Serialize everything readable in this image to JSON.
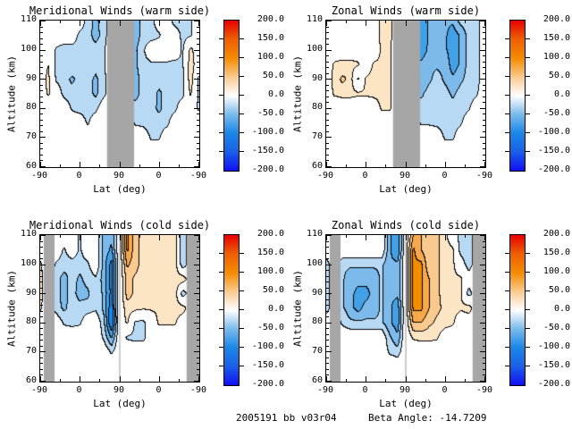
{
  "axes": {
    "x_title": "Lat (deg)",
    "y_title": "Altitude (km)",
    "x_tick_labels": [
      "-90",
      "0",
      "90",
      "0",
      "-90"
    ],
    "y_tick_labels": [
      "110",
      "100",
      "90",
      "80",
      "70",
      "60"
    ],
    "y_range_km": [
      60,
      110
    ]
  },
  "colorbar": {
    "labels": [
      "200.0",
      "150.0",
      "100.0",
      "50.0",
      "0.0",
      "-50.0",
      "-100.0",
      "-150.0",
      "-200.0"
    ],
    "min": -200.0,
    "max": 200.0,
    "gradient_top_to_bottom": [
      "#e80000",
      "#ee5f00",
      "#f28c00",
      "#f9c98e",
      "#ffffff",
      "#7cbaec",
      "#1a87e6",
      "#1b5fe6",
      "#120ff2"
    ]
  },
  "palette": {
    "positive_fills": [
      "#ffffff",
      "#fce5c4",
      "#f9c98e",
      "#f7a84b",
      "#f28c00",
      "#ee5f00",
      "#eb2f00",
      "#e80000"
    ],
    "negative_fills": [
      "#ffffff",
      "#b8d9f3",
      "#7cbaec",
      "#42a0e6",
      "#1a87e6",
      "#1b5fe6",
      "#1634ec",
      "#120ff2"
    ],
    "contour_line": "#000000",
    "missing_data_gray": "#a6a6a6",
    "polar_gap_line": "#cccccc",
    "background": "#ffffff"
  },
  "footer": {
    "dataset_id": "2005191 bb v03r04",
    "beta_angle": "Beta Angle: -14.7209"
  },
  "chart_data": [
    {
      "type": "heatmap",
      "title": "Meridional Winds (warm side)",
      "xlabel": "Lat (deg)",
      "ylabel": "Altitude (km)",
      "x_tick_labels": [
        "-90",
        "0",
        "90",
        "0",
        "-90"
      ],
      "lat_track_deg": [
        -90,
        -72,
        -54,
        -36,
        -18,
        0,
        18,
        36,
        54,
        72,
        90,
        72,
        54,
        36,
        18,
        0,
        -18,
        -36,
        -54,
        -72,
        -90
      ],
      "altitudes_km": [
        110,
        105,
        100,
        95,
        90,
        85,
        80,
        75,
        70,
        65,
        60
      ],
      "value_range": [
        -200,
        200
      ],
      "contour_interval": 25,
      "missing_data_bands_t": [
        [
          0.42,
          0.59
        ]
      ],
      "polar_gap_t": [],
      "values": [
        [
          0,
          0,
          0,
          0,
          0,
          0,
          -40,
          -55,
          -40,
          0,
          0,
          -40,
          -65,
          -40,
          -40,
          0,
          0,
          -40,
          -40,
          -30,
          0
        ],
        [
          0,
          0,
          0,
          0,
          0,
          -35,
          -40,
          -60,
          -40,
          0,
          0,
          -40,
          -65,
          -40,
          -40,
          -30,
          0,
          0,
          -35,
          -30,
          0
        ],
        [
          0,
          0,
          -30,
          -40,
          -40,
          -40,
          -40,
          -40,
          -30,
          0,
          0,
          -35,
          -55,
          -30,
          0,
          0,
          0,
          0,
          -30,
          35,
          0
        ],
        [
          0,
          25,
          -30,
          -40,
          -30,
          -40,
          -40,
          -40,
          -30,
          0,
          0,
          -35,
          -55,
          -35,
          -30,
          -30,
          -30,
          -35,
          -30,
          45,
          0
        ],
        [
          0,
          35,
          -30,
          -40,
          -55,
          -40,
          -40,
          -55,
          -35,
          0,
          0,
          -40,
          -60,
          -40,
          -40,
          -40,
          -35,
          -40,
          -35,
          45,
          -30
        ],
        [
          0,
          30,
          0,
          -35,
          -40,
          -40,
          -40,
          -55,
          -35,
          0,
          0,
          -40,
          -60,
          -40,
          -35,
          -55,
          -40,
          -40,
          -35,
          30,
          -30
        ],
        [
          0,
          0,
          0,
          0,
          -30,
          -40,
          -40,
          -35,
          0,
          0,
          0,
          -35,
          -40,
          -40,
          -40,
          -55,
          -40,
          -35,
          0,
          0,
          -30
        ],
        [
          0,
          0,
          0,
          0,
          0,
          0,
          -30,
          0,
          0,
          0,
          0,
          0,
          -30,
          -35,
          -40,
          -40,
          -35,
          0,
          0,
          0,
          0
        ],
        [
          0,
          0,
          0,
          0,
          0,
          0,
          0,
          0,
          0,
          0,
          0,
          0,
          0,
          0,
          -30,
          -30,
          0,
          0,
          0,
          0,
          0
        ],
        [
          0,
          0,
          0,
          0,
          0,
          0,
          0,
          0,
          0,
          0,
          0,
          0,
          0,
          0,
          0,
          0,
          0,
          0,
          0,
          0,
          0
        ],
        [
          0,
          0,
          0,
          0,
          0,
          0,
          0,
          0,
          0,
          0,
          0,
          0,
          0,
          0,
          0,
          0,
          0,
          0,
          0,
          0,
          0
        ]
      ]
    },
    {
      "type": "heatmap",
      "title": "Zonal Winds (warm side)",
      "xlabel": "Lat (deg)",
      "ylabel": "Altitude (km)",
      "x_tick_labels": [
        "-90",
        "0",
        "90",
        "0",
        "-90"
      ],
      "lat_track_deg": [
        -90,
        -72,
        -54,
        -36,
        -18,
        0,
        18,
        36,
        54,
        72,
        90,
        72,
        54,
        36,
        18,
        0,
        -18,
        -36,
        -54,
        -72,
        -90
      ],
      "altitudes_km": [
        110,
        105,
        100,
        95,
        90,
        85,
        80,
        75,
        70,
        65,
        60
      ],
      "value_range": [
        -200,
        200
      ],
      "contour_interval": 25,
      "missing_data_bands_t": [
        [
          0.42,
          0.59
        ]
      ],
      "polar_gap_t": [],
      "values": [
        [
          0,
          0,
          0,
          0,
          0,
          0,
          0,
          35,
          35,
          0,
          0,
          -70,
          -95,
          -70,
          -70,
          -70,
          -70,
          -40,
          -40,
          -40,
          0
        ],
        [
          0,
          0,
          0,
          0,
          0,
          0,
          0,
          35,
          35,
          0,
          0,
          -70,
          -95,
          -70,
          -55,
          -70,
          -90,
          -70,
          -40,
          -40,
          0
        ],
        [
          0,
          0,
          0,
          0,
          0,
          0,
          0,
          30,
          30,
          0,
          0,
          -70,
          -90,
          -70,
          -55,
          -70,
          -90,
          -70,
          -40,
          -40,
          0
        ],
        [
          0,
          30,
          35,
          35,
          30,
          0,
          30,
          30,
          30,
          0,
          0,
          -70,
          -70,
          -55,
          -55,
          -55,
          -90,
          -70,
          -40,
          -40,
          0
        ],
        [
          0,
          35,
          55,
          45,
          -30,
          30,
          35,
          35,
          30,
          0,
          0,
          -70,
          -70,
          -55,
          -40,
          -55,
          -70,
          -55,
          -40,
          -40,
          0
        ],
        [
          0,
          30,
          35,
          35,
          30,
          30,
          35,
          35,
          30,
          0,
          0,
          -55,
          -55,
          -40,
          -40,
          -40,
          -55,
          -40,
          -40,
          -30,
          0
        ],
        [
          0,
          0,
          0,
          0,
          0,
          0,
          0,
          30,
          30,
          0,
          0,
          -40,
          -40,
          -40,
          -40,
          -40,
          -40,
          -40,
          -30,
          0,
          0
        ],
        [
          0,
          0,
          0,
          0,
          0,
          0,
          0,
          0,
          0,
          0,
          0,
          0,
          -30,
          -30,
          -35,
          -40,
          -40,
          -30,
          0,
          0,
          0
        ],
        [
          0,
          0,
          0,
          0,
          0,
          0,
          0,
          0,
          0,
          0,
          0,
          0,
          0,
          0,
          0,
          -30,
          -30,
          0,
          0,
          0,
          0
        ],
        [
          0,
          0,
          0,
          0,
          0,
          0,
          0,
          0,
          0,
          0,
          0,
          0,
          0,
          0,
          0,
          0,
          0,
          0,
          0,
          0,
          0
        ],
        [
          0,
          0,
          0,
          0,
          0,
          0,
          0,
          0,
          0,
          0,
          0,
          0,
          0,
          0,
          0,
          0,
          0,
          0,
          0,
          0,
          0
        ]
      ]
    },
    {
      "type": "heatmap",
      "title": "Meridional Winds (cold side)",
      "xlabel": "Lat (deg)",
      "ylabel": "Altitude (km)",
      "x_tick_labels": [
        "-90",
        "0",
        "90",
        "0",
        "-90"
      ],
      "lat_track_deg": [
        -90,
        -72,
        -54,
        -36,
        -18,
        0,
        18,
        36,
        54,
        72,
        90,
        72,
        54,
        36,
        18,
        0,
        -18,
        -36,
        -54,
        -72,
        -90
      ],
      "altitudes_km": [
        110,
        105,
        100,
        95,
        90,
        85,
        80,
        75,
        70,
        65,
        60
      ],
      "value_range": [
        -200,
        200
      ],
      "contour_interval": 25,
      "missing_data_bands_t": [
        [
          0.022,
          0.09
        ],
        [
          0.92,
          1.0
        ]
      ],
      "polar_gap_t": [
        0.5
      ],
      "values": [
        [
          0,
          0,
          0,
          0,
          0,
          -30,
          0,
          0,
          -60,
          -70,
          0,
          105,
          60,
          40,
          35,
          30,
          30,
          45,
          -50,
          0,
          0
        ],
        [
          0,
          0,
          0,
          -30,
          0,
          -30,
          0,
          0,
          -60,
          -80,
          0,
          105,
          60,
          40,
          35,
          30,
          30,
          45,
          -50,
          0,
          0
        ],
        [
          30,
          0,
          -30,
          -40,
          -40,
          -40,
          -30,
          0,
          -60,
          -110,
          0,
          80,
          60,
          40,
          30,
          30,
          30,
          45,
          -50,
          0,
          0
        ],
        [
          35,
          0,
          -40,
          -60,
          -40,
          -55,
          -40,
          -30,
          -60,
          -110,
          0,
          60,
          45,
          35,
          30,
          30,
          30,
          45,
          45,
          0,
          0
        ],
        [
          35,
          0,
          -40,
          -60,
          -40,
          -60,
          -55,
          -30,
          -55,
          -110,
          0,
          60,
          45,
          30,
          30,
          30,
          30,
          45,
          -45,
          0,
          0
        ],
        [
          30,
          0,
          -40,
          -55,
          -40,
          -40,
          -40,
          -30,
          -55,
          -120,
          0,
          40,
          35,
          30,
          30,
          30,
          30,
          40,
          40,
          0,
          0
        ],
        [
          0,
          0,
          0,
          -30,
          -35,
          -30,
          0,
          0,
          -40,
          -130,
          0,
          30,
          -30,
          -35,
          0,
          30,
          30,
          30,
          0,
          0,
          0
        ],
        [
          0,
          0,
          0,
          0,
          0,
          0,
          0,
          0,
          -30,
          -80,
          0,
          -30,
          -35,
          -35,
          0,
          0,
          0,
          0,
          0,
          0,
          0
        ],
        [
          0,
          0,
          0,
          0,
          0,
          0,
          0,
          0,
          0,
          -30,
          0,
          0,
          0,
          0,
          0,
          0,
          0,
          0,
          0,
          0,
          0
        ],
        [
          0,
          0,
          0,
          0,
          0,
          0,
          0,
          0,
          0,
          0,
          0,
          0,
          0,
          0,
          0,
          0,
          0,
          0,
          0,
          0,
          0
        ],
        [
          0,
          0,
          0,
          0,
          0,
          0,
          0,
          0,
          0,
          0,
          0,
          0,
          0,
          0,
          0,
          0,
          0,
          0,
          0,
          0,
          0
        ]
      ]
    },
    {
      "type": "heatmap",
      "title": "Zonal Winds (cold side)",
      "xlabel": "Lat (deg)",
      "ylabel": "Altitude (km)",
      "x_tick_labels": [
        "-90",
        "0",
        "90",
        "0",
        "-90"
      ],
      "lat_track_deg": [
        -90,
        -72,
        -54,
        -36,
        -18,
        0,
        18,
        36,
        54,
        72,
        90,
        72,
        54,
        36,
        18,
        0,
        -18,
        -36,
        -54,
        -72,
        -90
      ],
      "altitudes_km": [
        110,
        105,
        100,
        95,
        90,
        85,
        80,
        75,
        70,
        65,
        60
      ],
      "value_range": [
        -200,
        200
      ],
      "contour_interval": 25,
      "missing_data_bands_t": [
        [
          0.022,
          0.09
        ],
        [
          0.92,
          1.0
        ]
      ],
      "polar_gap_t": [
        0.5
      ],
      "values": [
        [
          0,
          0,
          0,
          0,
          0,
          0,
          0,
          0,
          -70,
          -100,
          0,
          75,
          75,
          55,
          55,
          35,
          0,
          -40,
          -50,
          0,
          0
        ],
        [
          0,
          0,
          0,
          0,
          0,
          0,
          0,
          0,
          -70,
          -100,
          0,
          105,
          75,
          55,
          55,
          35,
          30,
          -40,
          -50,
          0,
          0
        ],
        [
          -40,
          0,
          -45,
          -45,
          -45,
          -45,
          -45,
          -45,
          -70,
          -70,
          0,
          105,
          105,
          55,
          55,
          40,
          30,
          0,
          -45,
          0,
          0
        ],
        [
          -40,
          0,
          -45,
          -65,
          -65,
          -65,
          -65,
          -45,
          -70,
          -70,
          0,
          105,
          105,
          75,
          55,
          40,
          30,
          30,
          0,
          0,
          0
        ],
        [
          -40,
          0,
          -45,
          -65,
          -85,
          -85,
          -65,
          -45,
          -70,
          -70,
          0,
          105,
          105,
          75,
          55,
          40,
          35,
          30,
          -40,
          0,
          0
        ],
        [
          -40,
          0,
          -45,
          -65,
          -85,
          -65,
          -65,
          -45,
          -70,
          -90,
          0,
          105,
          105,
          75,
          55,
          45,
          35,
          30,
          40,
          0,
          0
        ],
        [
          0,
          0,
          -30,
          -45,
          -45,
          -45,
          -45,
          -45,
          -70,
          -90,
          0,
          75,
          75,
          55,
          45,
          40,
          30,
          0,
          0,
          0,
          0
        ],
        [
          0,
          0,
          0,
          0,
          0,
          0,
          0,
          0,
          -45,
          -70,
          0,
          30,
          35,
          35,
          30,
          0,
          0,
          0,
          0,
          0,
          0
        ],
        [
          0,
          0,
          0,
          0,
          0,
          0,
          0,
          0,
          -30,
          -40,
          0,
          0,
          0,
          0,
          0,
          0,
          0,
          0,
          0,
          0,
          0
        ],
        [
          0,
          0,
          0,
          0,
          0,
          0,
          0,
          0,
          0,
          0,
          0,
          0,
          0,
          0,
          0,
          0,
          0,
          0,
          0,
          0,
          0
        ],
        [
          0,
          0,
          0,
          0,
          0,
          0,
          0,
          0,
          0,
          0,
          0,
          0,
          0,
          0,
          0,
          0,
          0,
          0,
          0,
          0,
          0
        ]
      ]
    }
  ]
}
